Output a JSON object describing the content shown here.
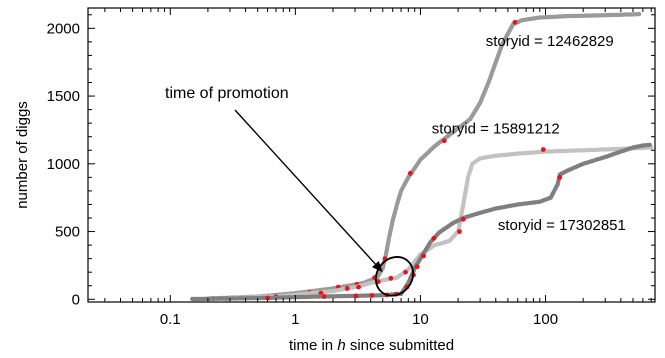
{
  "chart_data": {
    "type": "scatter",
    "xlabel": "time in h since submitted",
    "xlabel_prefix": "time in ",
    "xlabel_italic": "h",
    "xlabel_suffix": " since submitted",
    "ylabel": "number of diggs",
    "xscale": "log",
    "xlim": [
      0.022,
      750
    ],
    "ylim": [
      -20,
      2150
    ],
    "x_ticks": [
      0.1,
      1,
      10,
      100
    ],
    "x_tick_labels": [
      "0.1",
      "1",
      "10",
      "100"
    ],
    "y_ticks": [
      0,
      500,
      1000,
      1500,
      2000
    ],
    "y_tick_labels": [
      "0",
      "500",
      "1000",
      "1500",
      "2000"
    ],
    "grid": false,
    "annotation": {
      "text": "time of promotion",
      "arrow_to": [
        5.0,
        200
      ],
      "ellipse_center": [
        6.2,
        170
      ],
      "ellipse_rx_decades": 0.14,
      "ellipse_ry_units": 150
    },
    "highlight_color": "#e8141a",
    "series": [
      {
        "name": "storyid = 12462829",
        "color": "#9a9a9a",
        "label_anchor": [
          108,
          1870
        ],
        "points": [
          [
            0.2,
            5
          ],
          [
            0.5,
            20
          ],
          [
            1,
            45
          ],
          [
            2,
            80
          ],
          [
            3.5,
            120
          ],
          [
            4.5,
            160
          ],
          [
            5,
            230
          ],
          [
            5.3,
            330
          ],
          [
            5.6,
            450
          ],
          [
            6,
            580
          ],
          [
            6.5,
            700
          ],
          [
            7,
            800
          ],
          [
            8,
            900
          ],
          [
            10,
            1030
          ],
          [
            13,
            1130
          ],
          [
            18,
            1230
          ],
          [
            25,
            1330
          ],
          [
            30,
            1450
          ],
          [
            35,
            1600
          ],
          [
            40,
            1750
          ],
          [
            45,
            1880
          ],
          [
            50,
            1960
          ],
          [
            55,
            2030
          ],
          [
            65,
            2060
          ],
          [
            90,
            2080
          ],
          [
            150,
            2090
          ],
          [
            250,
            2095
          ],
          [
            400,
            2100
          ],
          [
            560,
            2105
          ]
        ],
        "highlights": [
          [
            0.22,
            5
          ],
          [
            0.45,
            15
          ],
          [
            1.3,
            50
          ],
          [
            2.2,
            90
          ],
          [
            3.1,
            110
          ],
          [
            4.3,
            160
          ],
          [
            5.2,
            300
          ],
          [
            8.3,
            930
          ],
          [
            15.5,
            1170
          ],
          [
            57,
            2045
          ]
        ]
      },
      {
        "name": "storyid = 15891212",
        "color": "#c2c2c2",
        "label_anchor": [
          40,
          1225
        ],
        "points": [
          [
            0.25,
            5
          ],
          [
            0.8,
            25
          ],
          [
            2,
            60
          ],
          [
            3,
            90
          ],
          [
            4,
            120
          ],
          [
            5,
            140
          ],
          [
            6.5,
            160
          ],
          [
            8,
            220
          ],
          [
            10,
            330
          ],
          [
            13,
            400
          ],
          [
            17,
            430
          ],
          [
            20,
            500
          ],
          [
            22,
            700
          ],
          [
            24,
            900
          ],
          [
            26,
            1000
          ],
          [
            30,
            1040
          ],
          [
            40,
            1060
          ],
          [
            60,
            1075
          ],
          [
            100,
            1090
          ],
          [
            200,
            1100
          ],
          [
            400,
            1110
          ],
          [
            700,
            1120
          ]
        ],
        "highlights": [
          [
            0.28,
            5
          ],
          [
            0.7,
            20
          ],
          [
            1.6,
            45
          ],
          [
            2.6,
            80
          ],
          [
            3.2,
            90
          ],
          [
            4.6,
            130
          ],
          [
            5.8,
            155
          ],
          [
            7.6,
            200
          ],
          [
            20.5,
            500
          ],
          [
            96,
            1105
          ]
        ]
      },
      {
        "name": "storyid = 17302851",
        "color": "#7f7f7f",
        "label_anchor": [
          135,
          510
        ],
        "points": [
          [
            0.15,
            2
          ],
          [
            0.6,
            10
          ],
          [
            1.5,
            20
          ],
          [
            3,
            25
          ],
          [
            5,
            30
          ],
          [
            7,
            40
          ],
          [
            8,
            120
          ],
          [
            9,
            230
          ],
          [
            10,
            300
          ],
          [
            12,
            420
          ],
          [
            14,
            490
          ],
          [
            18,
            560
          ],
          [
            22,
            600
          ],
          [
            28,
            630
          ],
          [
            40,
            670
          ],
          [
            60,
            700
          ],
          [
            90,
            720
          ],
          [
            110,
            750
          ],
          [
            125,
            850
          ],
          [
            130,
            920
          ],
          [
            150,
            950
          ],
          [
            200,
            1000
          ],
          [
            300,
            1050
          ],
          [
            400,
            1090
          ],
          [
            500,
            1120
          ],
          [
            600,
            1135
          ],
          [
            680,
            1140
          ]
        ],
        "highlights": [
          [
            0.6,
            10
          ],
          [
            1.7,
            20
          ],
          [
            3.05,
            25
          ],
          [
            4.1,
            28
          ],
          [
            5.4,
            32
          ],
          [
            6.4,
            38
          ],
          [
            7.8,
            90
          ],
          [
            8.8,
            180
          ],
          [
            9.4,
            240
          ],
          [
            10.6,
            320
          ],
          [
            12.8,
            450
          ],
          [
            22,
            590
          ],
          [
            130,
            900
          ]
        ]
      }
    ]
  }
}
